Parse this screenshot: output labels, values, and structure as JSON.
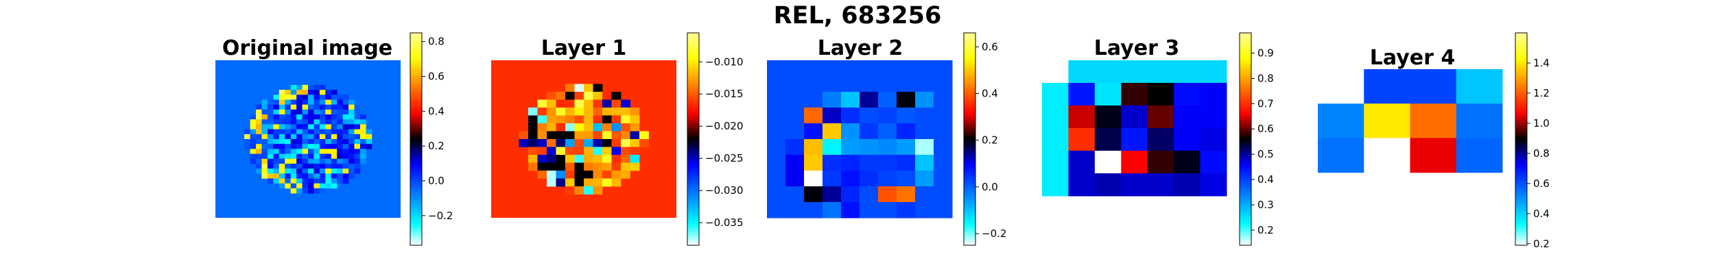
{
  "figure": {
    "suptitle": "REL, 683256"
  },
  "colormap": {
    "name": "blue-white-black-red-yellow diverging",
    "stops": [
      [
        "0.00",
        "#ffffff"
      ],
      [
        "0.10",
        "#00ffff"
      ],
      [
        "0.38",
        "#0000ff"
      ],
      [
        "0.50",
        "#000000"
      ],
      [
        "0.62",
        "#ff0000"
      ],
      [
        "0.88",
        "#ffff00"
      ],
      [
        "1.00",
        "#ffff99"
      ]
    ]
  },
  "chart_data": [
    {
      "type": "heatmap",
      "title": "Original image",
      "description_grid": "circular brain-like region on uniform background",
      "grid_size": 32,
      "vmin": -0.37,
      "vmax": 0.85,
      "background_value": -0.05,
      "colorbar_ticks": [
        {
          "label": "−0.2",
          "value": -0.2
        },
        {
          "label": "0.0",
          "value": 0.0
        },
        {
          "label": "0.2",
          "value": 0.2
        },
        {
          "label": "0.4",
          "value": 0.4
        },
        {
          "label": "0.6",
          "value": 0.6
        },
        {
          "label": "0.8",
          "value": 0.8
        }
      ]
    },
    {
      "type": "heatmap",
      "title": "Layer 1",
      "grid_size": 20,
      "vmin": -0.0385,
      "vmax": -0.0055,
      "background_value": -0.0165,
      "colorbar_ticks": [
        {
          "label": "−0.035",
          "value": -0.035
        },
        {
          "label": "−0.030",
          "value": -0.03
        },
        {
          "label": "−0.025",
          "value": -0.025
        },
        {
          "label": "−0.020",
          "value": -0.02
        },
        {
          "label": "−0.015",
          "value": -0.015
        },
        {
          "label": "−0.010",
          "value": -0.01
        }
      ]
    },
    {
      "type": "heatmap",
      "title": "Layer 2",
      "rows": 10,
      "cols": 10,
      "vmin": -0.25,
      "vmax": 0.66,
      "colorbar_ticks": [
        {
          "label": "−0.2",
          "value": -0.2
        },
        {
          "label": "0.0",
          "value": 0.0
        },
        {
          "label": "0.2",
          "value": 0.2
        },
        {
          "label": "0.4",
          "value": 0.4
        },
        {
          "label": "0.6",
          "value": 0.6
        }
      ],
      "values": [
        [
          0.02,
          0.02,
          0.02,
          0.02,
          0.02,
          0.02,
          0.02,
          0.02,
          0.02,
          0.02
        ],
        [
          0.02,
          0.02,
          0.02,
          0.02,
          0.02,
          0.02,
          0.02,
          0.02,
          0.02,
          0.02
        ],
        [
          0.02,
          0.02,
          0.02,
          -0.03,
          -0.1,
          0.14,
          0.0,
          0.2,
          -0.05,
          0.02
        ],
        [
          0.02,
          0.02,
          0.41,
          0.12,
          0.05,
          0.02,
          0.03,
          0.01,
          0.02,
          0.02
        ],
        [
          0.02,
          0.02,
          0.08,
          0.5,
          -0.05,
          0.04,
          0.0,
          0.06,
          0.02,
          0.02
        ],
        [
          0.02,
          0.05,
          0.49,
          -0.15,
          -0.06,
          -0.05,
          -0.04,
          -0.06,
          -0.22,
          0.02
        ],
        [
          0.02,
          0.1,
          0.5,
          0.05,
          0.06,
          0.04,
          0.04,
          0.05,
          -0.1,
          0.02
        ],
        [
          0.02,
          0.1,
          -0.25,
          0.04,
          0.08,
          0.05,
          0.03,
          0.02,
          -0.06,
          0.02
        ],
        [
          0.02,
          0.02,
          0.2,
          0.14,
          0.06,
          0.02,
          0.39,
          0.42,
          0.02,
          0.02
        ],
        [
          0.02,
          0.02,
          0.02,
          -0.02,
          0.08,
          0.02,
          0.02,
          0.04,
          0.02,
          0.02
        ]
      ]
    },
    {
      "type": "heatmap",
      "title": "Layer 3",
      "rows": 7,
      "cols": 7,
      "vmin": 0.14,
      "vmax": 0.98,
      "colorbar_ticks": [
        {
          "label": "0.2",
          "value": 0.2
        },
        {
          "label": "0.3",
          "value": 0.3
        },
        {
          "label": "0.4",
          "value": 0.4
        },
        {
          "label": "0.5",
          "value": 0.5
        },
        {
          "label": "0.6",
          "value": 0.6
        },
        {
          "label": "0.7",
          "value": 0.7
        },
        {
          "label": "0.8",
          "value": 0.8
        },
        {
          "label": "0.9",
          "value": 0.9
        }
      ],
      "values": [
        [
          null,
          0.26,
          0.26,
          0.26,
          0.26,
          0.26,
          0.26
        ],
        [
          0.24,
          0.44,
          0.25,
          0.58,
          0.56,
          0.45,
          0.46
        ],
        [
          0.24,
          0.64,
          0.55,
          0.48,
          0.6,
          0.46,
          0.46
        ],
        [
          0.24,
          0.7,
          0.53,
          0.44,
          0.52,
          0.46,
          0.47
        ],
        [
          0.24,
          0.48,
          0.14,
          0.66,
          0.58,
          0.55,
          0.45
        ],
        [
          0.24,
          0.48,
          0.49,
          0.48,
          0.48,
          0.49,
          0.47
        ],
        [
          null,
          null,
          null,
          null,
          null,
          null,
          null
        ]
      ]
    },
    {
      "type": "heatmap",
      "title": "Layer 4",
      "rows": 4,
      "cols": 4,
      "vmin": 0.19,
      "vmax": 1.6,
      "colorbar_ticks": [
        {
          "label": "0.2",
          "value": 0.2
        },
        {
          "label": "0.4",
          "value": 0.4
        },
        {
          "label": "0.6",
          "value": 0.6
        },
        {
          "label": "0.8",
          "value": 0.8
        },
        {
          "label": "1.0",
          "value": 1.0
        },
        {
          "label": "1.2",
          "value": 1.2
        },
        {
          "label": "1.4",
          "value": 1.4
        }
      ],
      "values": [
        [
          null,
          0.62,
          0.62,
          0.42
        ],
        [
          0.52,
          1.4,
          1.22,
          0.55
        ],
        [
          0.55,
          0.19,
          1.05,
          0.57
        ],
        [
          null,
          null,
          null,
          null
        ]
      ]
    }
  ]
}
